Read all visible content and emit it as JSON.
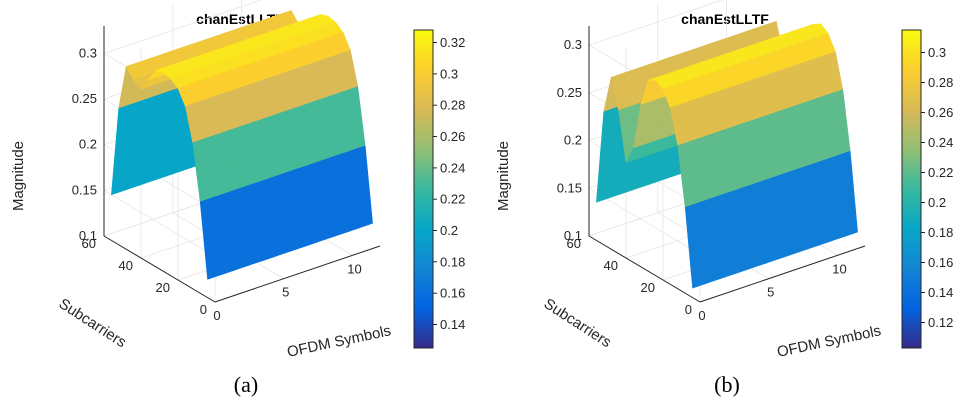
{
  "chart_data": [
    {
      "type": "surface",
      "panel_caption": "(a)",
      "title": "chanEstLLTF",
      "xlabel": "OFDM Symbols",
      "ylabel": "Subcarriers",
      "zlabel": "Magnitude",
      "x_ticks": [
        "0",
        "5",
        "10"
      ],
      "y_ticks": [
        "0",
        "20",
        "40",
        "60"
      ],
      "z_ticks": [
        "0.1",
        "0.15",
        "0.2",
        "0.25",
        "0.3"
      ],
      "xlim": [
        0,
        12
      ],
      "ylim": [
        0,
        60
      ],
      "zlim": [
        0.1,
        0.33
      ],
      "colormap": "parula",
      "colorbar_ticks": [
        "0.14",
        "0.16",
        "0.18",
        "0.2",
        "0.22",
        "0.24",
        "0.26",
        "0.28",
        "0.3",
        "0.32"
      ],
      "colorbar_range": [
        0.125,
        0.328
      ],
      "profile_subcarriers": [
        4,
        8,
        12,
        16,
        20,
        24,
        28,
        32,
        36,
        40,
        44,
        48,
        52,
        56
      ],
      "profile_magnitude": [
        0.12,
        0.2,
        0.26,
        0.295,
        0.31,
        0.316,
        0.318,
        0.315,
        0.3,
        0.285,
        0.29,
        0.3,
        0.25,
        0.15
      ]
    },
    {
      "type": "surface",
      "panel_caption": "(b)",
      "title": "chanEstLLTF",
      "xlabel": "OFDM Symbols",
      "ylabel": "Subcarriers",
      "zlabel": "Magnitude",
      "x_ticks": [
        "0",
        "5",
        "10"
      ],
      "y_ticks": [
        "0",
        "20",
        "40",
        "60"
      ],
      "z_ticks": [
        "0.1",
        "0.15",
        "0.2",
        "0.25",
        "0.3"
      ],
      "xlim": [
        0,
        12
      ],
      "ylim": [
        0,
        60
      ],
      "zlim": [
        0.1,
        0.32
      ],
      "colormap": "parula",
      "colorbar_ticks": [
        "0.12",
        "0.14",
        "0.16",
        "0.18",
        "0.2",
        "0.22",
        "0.24",
        "0.26",
        "0.28",
        "0.3"
      ],
      "colorbar_range": [
        0.103,
        0.315
      ],
      "profile_subcarriers": [
        4,
        8,
        12,
        16,
        20,
        24,
        28,
        32,
        36,
        40,
        44,
        48,
        52,
        56
      ],
      "profile_magnitude": [
        0.11,
        0.19,
        0.25,
        0.285,
        0.3,
        0.305,
        0.3,
        0.27,
        0.22,
        0.2,
        0.25,
        0.28,
        0.24,
        0.14
      ]
    }
  ]
}
